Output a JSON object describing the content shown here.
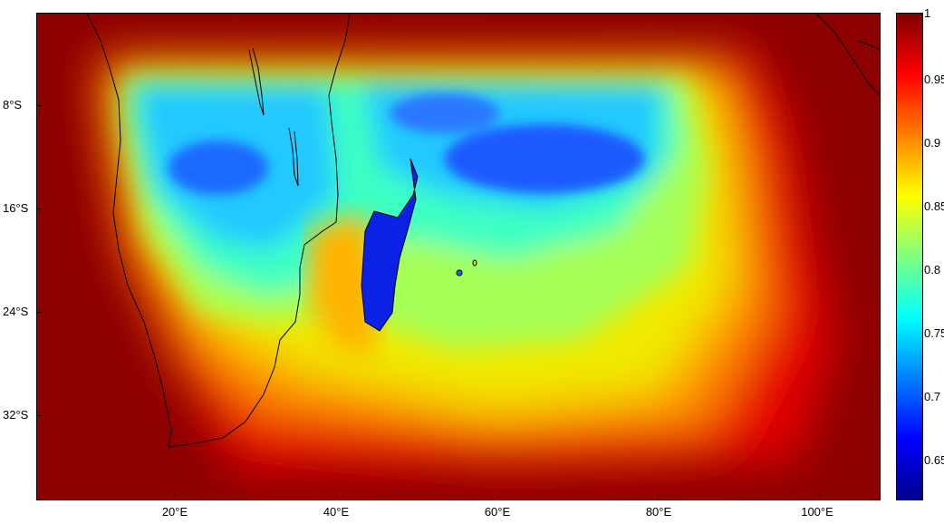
{
  "map": {
    "lat_labels": [
      "8°S",
      "16°S",
      "24°S",
      "32°S"
    ],
    "lon_labels": [
      "20°E",
      "40°E",
      "60°E",
      "80°E",
      "100°E"
    ]
  },
  "colorbar": {
    "labels": [
      "1",
      "0.95",
      "0.9",
      "0.85",
      "0.8",
      "0.75",
      "0.7",
      "0.65"
    ],
    "colormap": "jet",
    "range": [
      0.62,
      1
    ]
  },
  "chart_data": {
    "type": "heatmap",
    "x_ticks_deg_east": [
      20,
      40,
      60,
      80,
      100
    ],
    "y_ticks_deg_south": [
      8,
      16,
      24,
      32
    ],
    "color_range": [
      0.62,
      1
    ],
    "colorbar_ticks": [
      0.65,
      0.7,
      0.75,
      0.8,
      0.85,
      0.9,
      0.95,
      1
    ]
  }
}
